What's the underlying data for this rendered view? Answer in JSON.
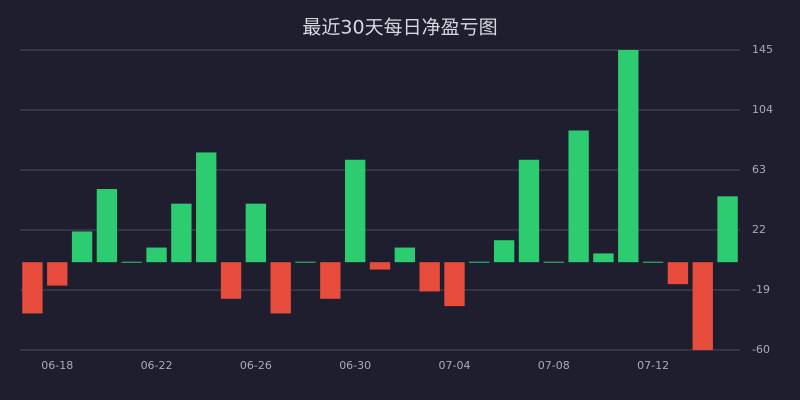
{
  "chart_data": {
    "type": "bar",
    "title": "最近30天每日净盈亏图",
    "categories": [
      null,
      "06-18",
      null,
      null,
      null,
      "06-22",
      null,
      null,
      null,
      "06-26",
      null,
      null,
      null,
      "06-30",
      null,
      null,
      null,
      "07-04",
      null,
      null,
      null,
      "07-08",
      null,
      null,
      null,
      "07-12",
      null,
      null,
      null
    ],
    "values": [
      -35,
      -16,
      21,
      50,
      0,
      10,
      40,
      75,
      -25,
      40,
      -35,
      0,
      -25,
      70,
      -5,
      10,
      -20,
      -30,
      0,
      15,
      70,
      0,
      90,
      6,
      145,
      0,
      -15,
      -60,
      45
    ],
    "positive_color": "#2ecc71",
    "negative_color": "#e74c3c",
    "ylim": [
      -60,
      145
    ],
    "yticks": [
      -60,
      -19,
      22,
      63,
      104,
      145
    ],
    "grid": true
  }
}
